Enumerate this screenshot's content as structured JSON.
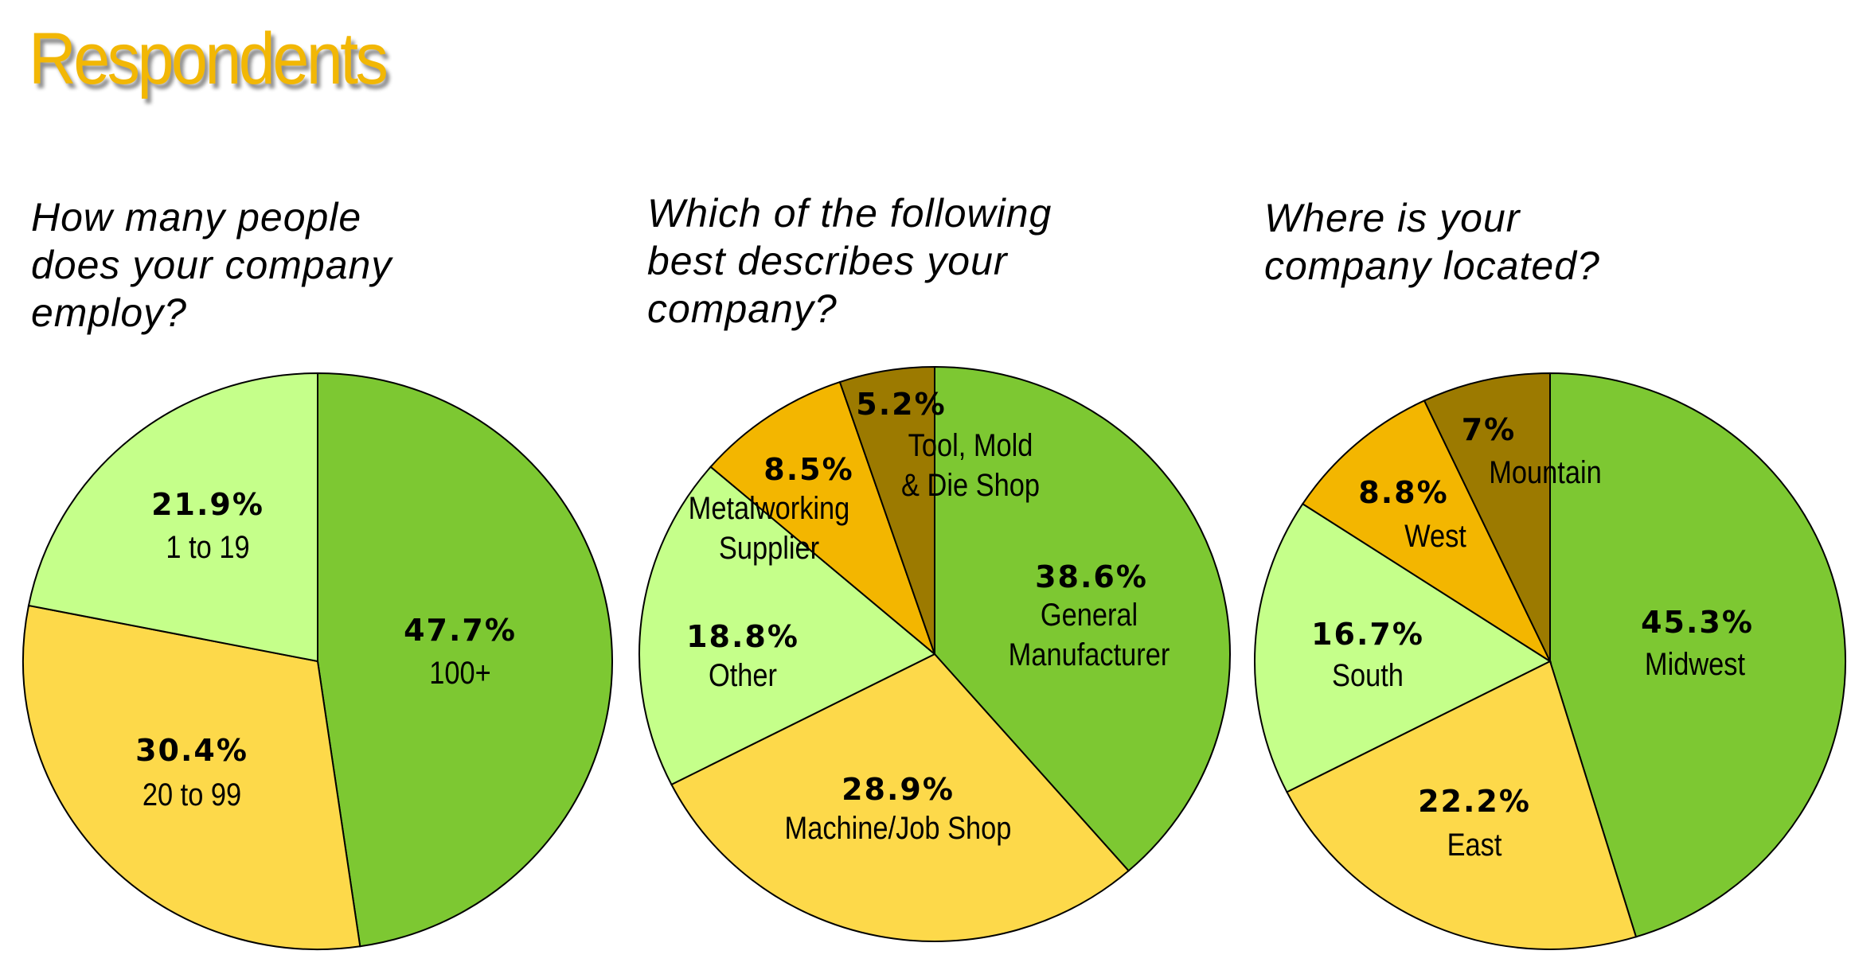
{
  "title": "Respondents",
  "colors": {
    "title": "#F2B705",
    "green": "#7DC832",
    "yellow": "#FDD94A",
    "light_green": "#C5FF8A",
    "orange": "#F3B600",
    "brown": "#9C7A00"
  },
  "chart_data": [
    {
      "type": "pie",
      "title": [
        "How many people",
        "does your company",
        "employ?"
      ],
      "slices": [
        {
          "label": "100+",
          "value": 47.7,
          "value_label": "47.7%",
          "color": "#7DC832"
        },
        {
          "label": "20 to 99",
          "value": 30.4,
          "value_label": "30.4%",
          "color": "#FDD94A"
        },
        {
          "label": "1 to 19",
          "value": 21.9,
          "value_label": "21.9%",
          "color": "#C5FF8A"
        }
      ]
    },
    {
      "type": "pie",
      "title": [
        "Which of the following",
        "best describes your",
        "company?"
      ],
      "slices": [
        {
          "label": "General Manufacturer",
          "lines": [
            "General",
            "Manufacturer"
          ],
          "value": 38.6,
          "value_label": "38.6%",
          "color": "#7DC832"
        },
        {
          "label": "Machine/Job Shop",
          "lines": [
            "Machine/Job Shop"
          ],
          "value": 28.9,
          "value_label": "28.9%",
          "color": "#FDD94A"
        },
        {
          "label": "Other",
          "lines": [
            "Other"
          ],
          "value": 18.8,
          "value_label": "18.8%",
          "color": "#C5FF8A"
        },
        {
          "label": "Metalworking Supplier",
          "lines": [
            "Metalworking",
            "Supplier"
          ],
          "value": 8.5,
          "value_label": "8.5%",
          "color": "#F3B600"
        },
        {
          "label": "Tool, Mold & Die Shop",
          "lines": [
            "Tool, Mold",
            "& Die Shop"
          ],
          "value": 5.2,
          "value_label": "5.2%",
          "color": "#9C7A00"
        }
      ]
    },
    {
      "type": "pie",
      "title": [
        "Where is your",
        "company located?"
      ],
      "slices": [
        {
          "label": "Midwest",
          "value": 45.3,
          "value_label": "45.3%",
          "color": "#7DC832"
        },
        {
          "label": "East",
          "value": 22.2,
          "value_label": "22.2%",
          "color": "#FDD94A"
        },
        {
          "label": "South",
          "value": 16.7,
          "value_label": "16.7%",
          "color": "#C5FF8A"
        },
        {
          "label": "West",
          "value": 8.8,
          "value_label": "8.8%",
          "color": "#F3B600"
        },
        {
          "label": "Mountain",
          "value": 7,
          "value_label": "7%",
          "color": "#9C7A00"
        }
      ]
    }
  ]
}
